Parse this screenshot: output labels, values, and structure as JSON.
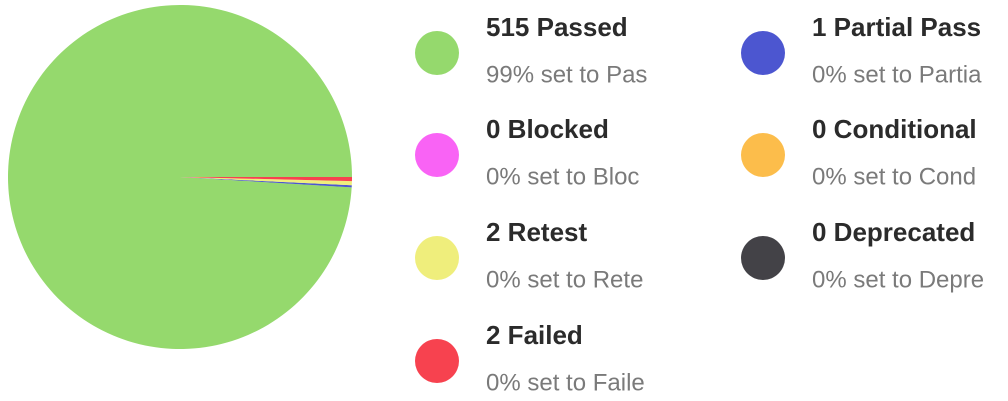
{
  "chart_data": {
    "type": "pie",
    "categories": [
      "515 Passed",
      "1 Partial Pass",
      "0 Blocked",
      "0 Conditional",
      "2 Retest",
      "0 Deprecated",
      "2 Failed"
    ],
    "values": [
      515,
      1,
      0,
      0,
      2,
      0,
      2
    ],
    "captions": [
      "99% set to Pas",
      "0% set to Partia",
      "0% set to Bloc",
      "0% set to Cond",
      "0% set to Rete",
      "0% set to Depre",
      "0% set to Faile"
    ],
    "colors": [
      "#95d96d",
      "#4c56d0",
      "#f963f5",
      "#fcbd4b",
      "#efee7c",
      "#434247",
      "#f7424f"
    ]
  }
}
